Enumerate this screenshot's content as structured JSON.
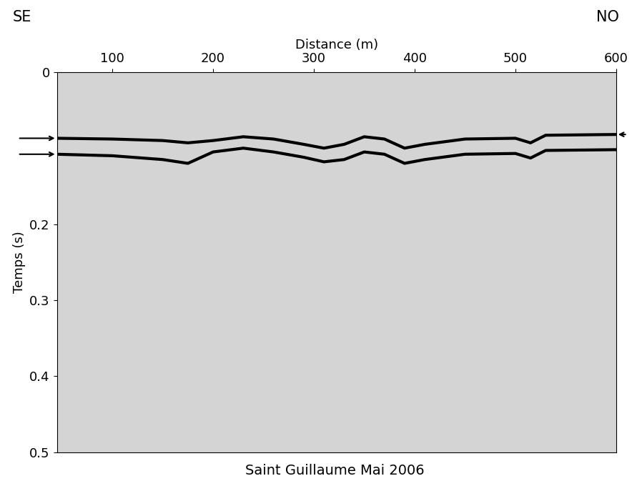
{
  "chart_data": {
    "type": "line",
    "title": "Saint Guillaume Mai 2006",
    "x_label": "Distance (m)",
    "y_label": "Temps (s)",
    "annotations": [
      "SE",
      "NO"
    ],
    "x": [
      45,
      100,
      150,
      175,
      200,
      230,
      260,
      290,
      310,
      330,
      350,
      370,
      390,
      410,
      450,
      500,
      515,
      530,
      600
    ],
    "series": [
      {
        "color": "#000000",
        "line_style": "solid",
        "values": [
          0.087,
          0.088,
          0.09,
          0.093,
          0.09,
          0.085,
          0.088,
          0.095,
          0.1,
          0.095,
          0.085,
          0.088,
          0.1,
          0.095,
          0.088,
          0.087,
          0.093,
          0.083,
          0.082
        ]
      },
      {
        "color": "#000000",
        "line_style": "solid",
        "values": [
          0.108,
          0.11,
          0.115,
          0.12,
          0.105,
          0.1,
          0.105,
          0.112,
          0.118,
          0.115,
          0.105,
          0.108,
          0.12,
          0.115,
          0.108,
          0.107,
          0.113,
          0.103,
          0.102
        ]
      }
    ],
    "xlim": [
      45,
      600
    ],
    "xticks": [
      100,
      200,
      300,
      400,
      500,
      600
    ],
    "ylim": [
      0.5,
      0
    ],
    "yticks": [
      0,
      0.2,
      0.3,
      0.4,
      0.5
    ],
    "grid": false
  }
}
